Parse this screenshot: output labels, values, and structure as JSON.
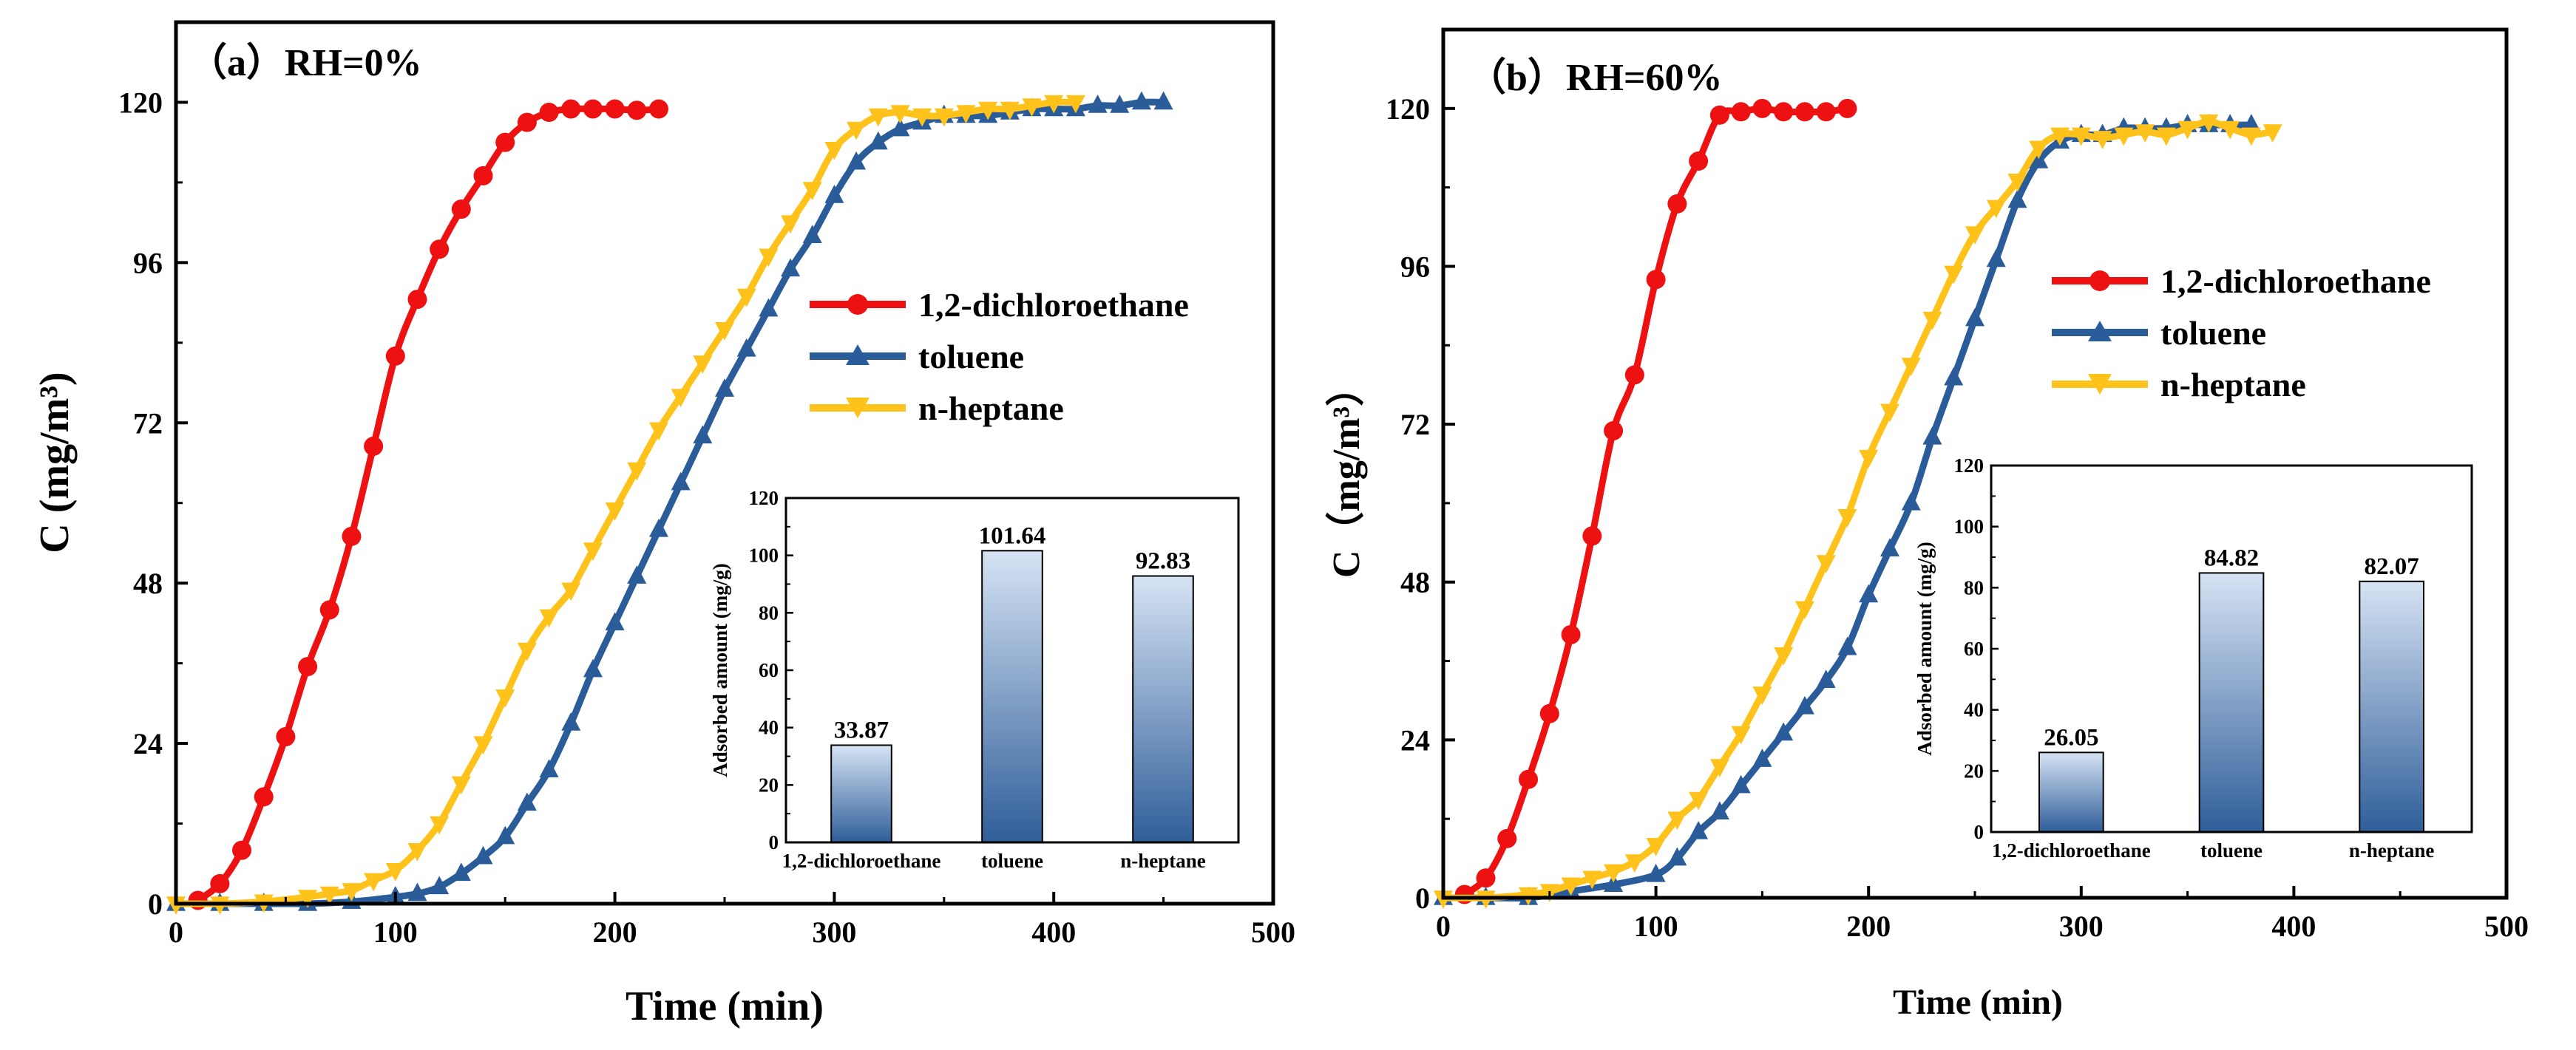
{
  "chart_data": [
    {
      "type": "line",
      "panel_label": "（a）RH=0%",
      "xlabel": "Time (min)",
      "ylabel": "C (mg/m³)",
      "xlim": [
        0,
        500
      ],
      "ylim": [
        0,
        132
      ],
      "xticks": [
        0,
        100,
        200,
        300,
        400,
        500
      ],
      "yticks": [
        0,
        24,
        48,
        72,
        96,
        120
      ],
      "legend_position": "center-right",
      "series": [
        {
          "name": "1,2-dichloroethane",
          "color": "#ee1111",
          "marker": "circle",
          "x": [
            10,
            20,
            30,
            40,
            50,
            60,
            70,
            80,
            90,
            100,
            110,
            120,
            130,
            140,
            150,
            160,
            170,
            180,
            190,
            200,
            210,
            220
          ],
          "y": [
            0.5,
            3,
            8,
            16,
            25,
            35.5,
            44,
            55,
            68.5,
            82,
            90.5,
            98,
            104,
            109,
            114,
            117,
            118.5,
            119,
            119,
            119,
            118.8,
            119
          ]
        },
        {
          "name": "toluene",
          "color": "#2b5c9a",
          "marker": "triangle-up",
          "x": [
            0,
            20,
            40,
            60,
            80,
            100,
            110,
            120,
            130,
            140,
            150,
            160,
            170,
            180,
            190,
            200,
            210,
            220,
            230,
            240,
            250,
            260,
            270,
            280,
            290,
            300,
            310,
            320,
            330,
            340,
            350,
            360,
            370,
            380,
            390,
            400,
            410,
            420,
            430,
            440,
            450
          ],
          "y": [
            0,
            0,
            0,
            0,
            0.3,
            1,
            1.5,
            2.5,
            4.5,
            7,
            10,
            15,
            20,
            27,
            35,
            42,
            49,
            56,
            63,
            70,
            77,
            83,
            89,
            95,
            100,
            106,
            111,
            114,
            116,
            117,
            118,
            118,
            118,
            118.5,
            119,
            119,
            119,
            119.5,
            119.5,
            120,
            120
          ]
        },
        {
          "name": "n-heptane",
          "color": "#ffc21a",
          "marker": "triangle-down",
          "x": [
            0,
            20,
            40,
            60,
            70,
            80,
            90,
            100,
            110,
            120,
            130,
            140,
            150,
            160,
            170,
            180,
            190,
            200,
            210,
            220,
            230,
            240,
            250,
            260,
            270,
            280,
            290,
            300,
            310,
            320,
            330,
            340,
            350,
            360,
            370,
            380,
            390,
            400,
            410
          ],
          "y": [
            0,
            0,
            0.3,
            1,
            1.5,
            2,
            3.5,
            5,
            8,
            12,
            18,
            24,
            31,
            38,
            43,
            47,
            53,
            59,
            65,
            71,
            76,
            81,
            86,
            91,
            97,
            102,
            107,
            113,
            116,
            118,
            118.5,
            118,
            118,
            118.5,
            119,
            119,
            119.5,
            120,
            120
          ]
        }
      ],
      "inset": {
        "type": "bar",
        "ylabel": "Adsorbed amount (mg/g)",
        "ylim": [
          0,
          120
        ],
        "yticks": [
          0,
          20,
          40,
          60,
          80,
          100,
          120
        ],
        "categories": [
          "1,2-dichloroethane",
          "toluene",
          "n-heptane"
        ],
        "values": [
          33.87,
          101.64,
          92.83
        ],
        "value_labels": [
          "33.87",
          "101.64",
          "92.83"
        ],
        "bar_color_top": "#d6e3f4",
        "bar_color_bottom": "#2f5e99"
      }
    },
    {
      "type": "line",
      "panel_label": "（b）RH=60%",
      "xlabel": "Time (min)",
      "ylabel": "C（mg/m³）",
      "xlim": [
        0,
        500
      ],
      "ylim": [
        0,
        132
      ],
      "xticks": [
        0,
        100,
        200,
        300,
        400,
        500
      ],
      "yticks": [
        0,
        24,
        48,
        72,
        96,
        120
      ],
      "legend_position": "center-right",
      "series": [
        {
          "name": "1,2-dichloroethane",
          "color": "#ee1111",
          "marker": "circle",
          "x": [
            10,
            20,
            30,
            40,
            50,
            60,
            70,
            80,
            90,
            100,
            110,
            120,
            130,
            140,
            150,
            160,
            170,
            180,
            190
          ],
          "y": [
            0.5,
            3,
            9,
            18,
            28,
            40,
            55,
            71,
            79.5,
            94,
            105.5,
            112,
            119,
            119.5,
            120,
            119.5,
            119.5,
            119.5,
            120
          ]
        },
        {
          "name": "toluene",
          "color": "#2b5c9a",
          "marker": "triangle-up",
          "x": [
            0,
            20,
            40,
            60,
            80,
            100,
            110,
            120,
            130,
            140,
            150,
            160,
            170,
            180,
            190,
            200,
            210,
            220,
            230,
            240,
            250,
            260,
            270,
            280,
            290,
            300,
            310,
            320,
            330,
            340,
            350,
            360,
            370,
            380
          ],
          "y": [
            0,
            0,
            0,
            1,
            2,
            3.5,
            6,
            10,
            13,
            17,
            21,
            25,
            29,
            33,
            38,
            46,
            53,
            60,
            70,
            79,
            88,
            97,
            106,
            112,
            115,
            116,
            116,
            117,
            117,
            117,
            117.5,
            117.5,
            117.5,
            117.5
          ]
        },
        {
          "name": "n-heptane",
          "color": "#ffc21a",
          "marker": "triangle-down",
          "x": [
            0,
            20,
            40,
            50,
            60,
            70,
            80,
            90,
            100,
            110,
            120,
            130,
            140,
            150,
            160,
            170,
            180,
            190,
            200,
            210,
            220,
            230,
            240,
            250,
            260,
            270,
            280,
            290,
            300,
            310,
            320,
            330,
            340,
            350,
            360,
            370,
            380,
            390
          ],
          "y": [
            0,
            0,
            0.5,
            1,
            2,
            3,
            4,
            5.5,
            8,
            12,
            15,
            20,
            25,
            31,
            37,
            44,
            51,
            58,
            67,
            74,
            81,
            88,
            95,
            101,
            105,
            109,
            114,
            116,
            116,
            115.5,
            116,
            116.5,
            116,
            117,
            118,
            117,
            116,
            116.5
          ]
        }
      ],
      "inset": {
        "type": "bar",
        "ylabel": "Adsorbed amount (mg/g)",
        "ylim": [
          0,
          120
        ],
        "yticks": [
          0,
          20,
          40,
          60,
          80,
          100,
          120
        ],
        "categories": [
          "1,2-dichloroethane",
          "toluene",
          "n-heptane"
        ],
        "values": [
          26.05,
          84.82,
          82.07
        ],
        "value_labels": [
          "26.05",
          "84.82",
          "82.07"
        ],
        "bar_color_top": "#d6e3f4",
        "bar_color_bottom": "#2f5e99"
      }
    }
  ]
}
